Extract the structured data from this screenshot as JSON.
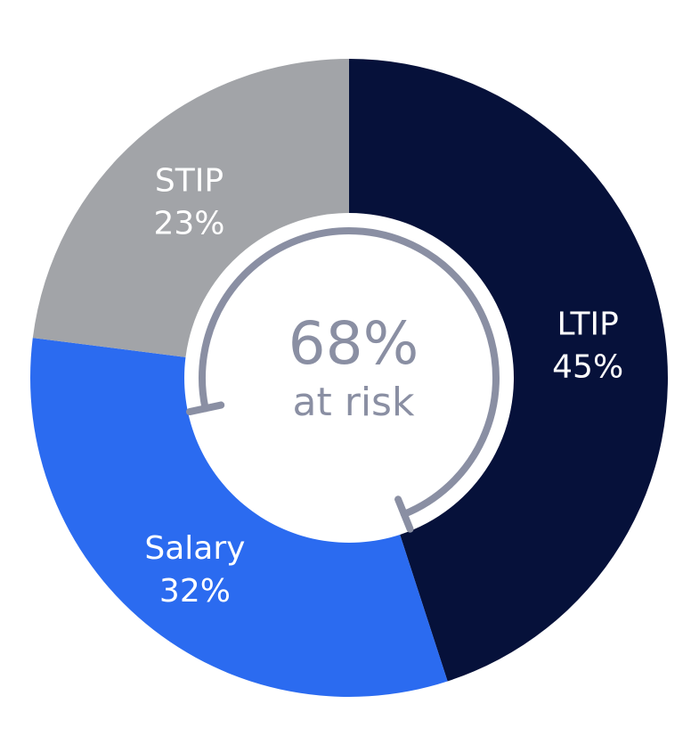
{
  "chart_data": {
    "type": "pie",
    "slices": [
      {
        "label": "LTIP",
        "value": 45,
        "value_label": "45%",
        "color": "#06113a"
      },
      {
        "label": "Salary",
        "value": 32,
        "value_label": "32%",
        "color": "#2b6bf0"
      },
      {
        "label": "STIP",
        "value": 23,
        "value_label": "23%",
        "color": "#a2a4a8"
      }
    ],
    "center": {
      "value": "68%",
      "caption": "at risk",
      "arrow_color": "#8a8fa3"
    },
    "legend": "none"
  }
}
